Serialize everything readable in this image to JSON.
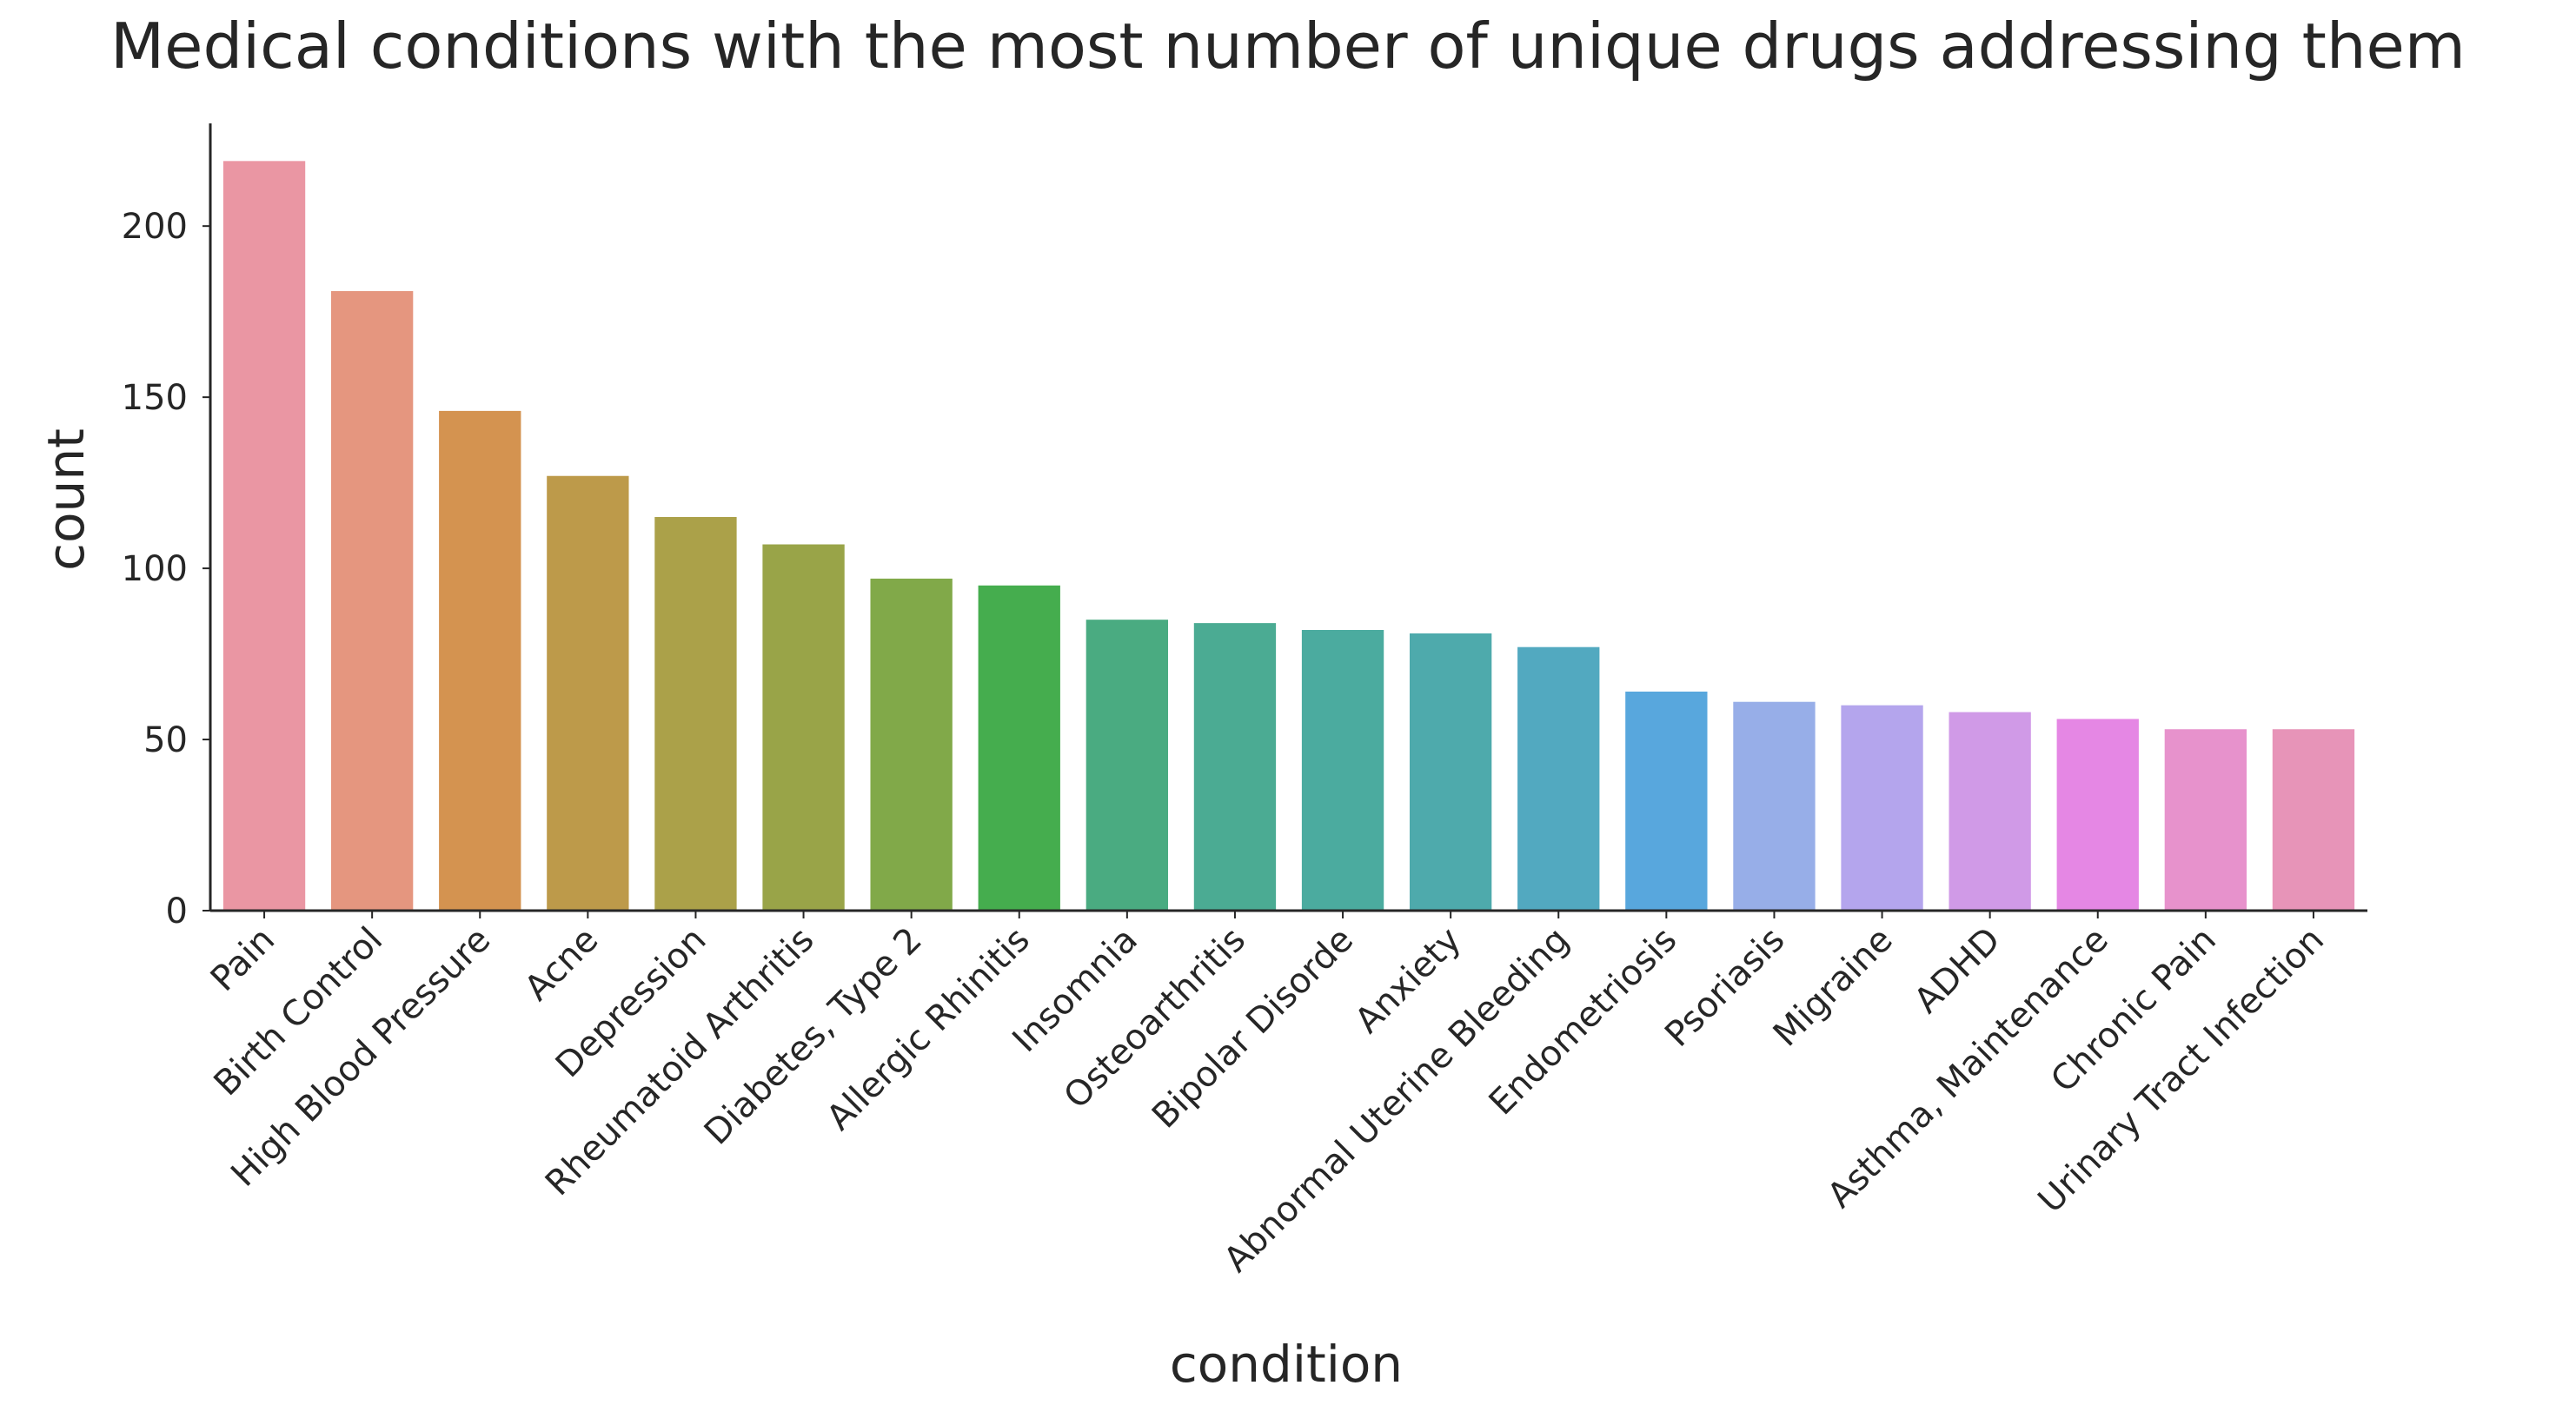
{
  "chart_data": {
    "type": "bar",
    "title": "Medical conditions with the most number of unique drugs addressing them",
    "xlabel": "condition",
    "ylabel": "count",
    "categories": [
      "Pain",
      "Birth Control",
      "High Blood Pressure",
      "Acne",
      "Depression",
      "Rheumatoid Arthritis",
      "Diabetes, Type 2",
      "Allergic Rhinitis",
      "Insomnia",
      "Osteoarthritis",
      "Bipolar Disorde",
      "Anxiety",
      "Abnormal Uterine Bleeding",
      "Endometriosis",
      "Psoriasis",
      "Migraine",
      "ADHD",
      "Asthma, Maintenance",
      "Chronic Pain",
      "Urinary Tract Infection"
    ],
    "values": [
      219,
      181,
      146,
      127,
      115,
      107,
      97,
      95,
      85,
      84,
      82,
      81,
      77,
      64,
      61,
      60,
      58,
      56,
      53,
      53
    ],
    "colors": [
      "#ea96a3",
      "#e5967f",
      "#d49350",
      "#bd9a4a",
      "#aba149",
      "#99a448",
      "#81a949",
      "#45ad4e",
      "#4aab81",
      "#4bab93",
      "#4bab9f",
      "#4eaaac",
      "#52a9c0",
      "#58a7dd",
      "#97aee8",
      "#b4a5ed",
      "#d09ae7",
      "#e587e4",
      "#e792cc",
      "#e794b8"
    ],
    "yticks": [
      0,
      50,
      100,
      150,
      200
    ],
    "ylim": [
      0,
      230
    ],
    "grid": false,
    "legend": "none"
  }
}
